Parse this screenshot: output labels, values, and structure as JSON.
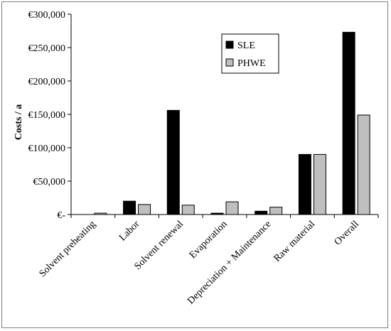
{
  "chart_data": {
    "type": "bar",
    "title": "",
    "xlabel": "",
    "ylabel": "Costs / a",
    "ylim": [
      0,
      300000
    ],
    "yticks": [
      0,
      50000,
      100000,
      150000,
      200000,
      250000,
      300000
    ],
    "ytick_labels": [
      "€-",
      "€50,000",
      "€100,000",
      "€150,000",
      "€200,000",
      "€250,000",
      "€300,000"
    ],
    "grid": false,
    "legend": "top-center",
    "categories": [
      "Solvent preheating",
      "Labor",
      "Solvent renewal",
      "Evaporation",
      "Depreciation + Maintenance",
      "Raw material",
      "Overall"
    ],
    "series": [
      {
        "name": "SLE",
        "color": "#000000",
        "values": [
          0,
          20000,
          156000,
          2000,
          5000,
          90000,
          273000
        ]
      },
      {
        "name": "PHWE",
        "color": "#bfbfbf",
        "values": [
          2000,
          15000,
          14000,
          19000,
          11000,
          90000,
          149000
        ]
      }
    ]
  }
}
